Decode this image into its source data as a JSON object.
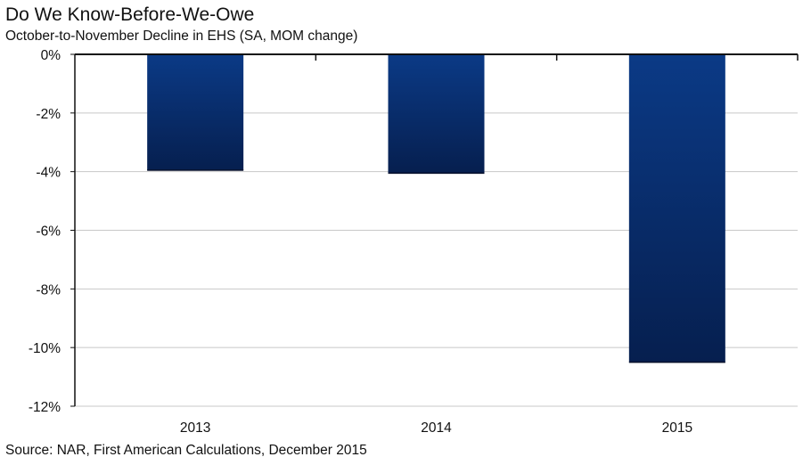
{
  "chart_data": {
    "type": "bar",
    "title": "Do We Know-Before-We-Owe",
    "subtitle": "October-to-November Decline in EHS (SA, MOM change)",
    "source": "Source: NAR, First American Calculations, December 2015",
    "categories": [
      "2013",
      "2014",
      "2015"
    ],
    "values": [
      -3.95,
      -4.05,
      -10.5
    ],
    "ylim": [
      -12,
      0
    ],
    "yticks": [
      0,
      -2,
      -4,
      -6,
      -8,
      -10,
      -12
    ],
    "ytick_labels": [
      "0%",
      "-2%",
      "-4%",
      "-6%",
      "-8%",
      "-10%",
      "-12%"
    ],
    "grid": true,
    "legend": "none",
    "colors": {
      "bar_top": "#0b3a86",
      "bar_bottom": "#061f4f",
      "grid": "#c8c8c8",
      "axis": "#111111"
    }
  }
}
